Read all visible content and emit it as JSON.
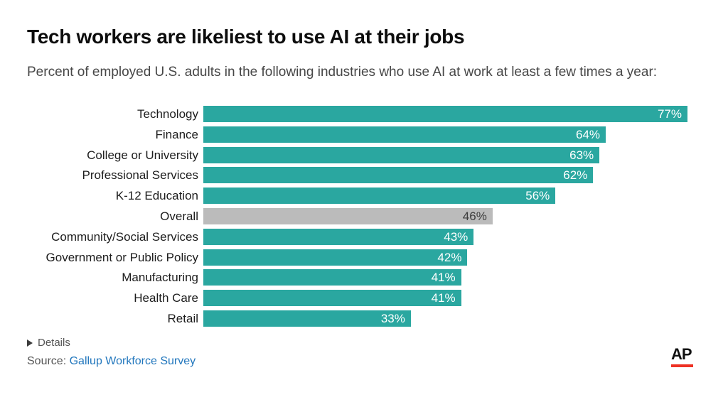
{
  "header": {
    "title": "Tech workers are likeliest to use AI at their jobs",
    "subtitle": "Percent of employed U.S. adults in the following industries who use AI at work at least a few times a year:"
  },
  "chart_data": {
    "type": "bar",
    "orientation": "horizontal",
    "title": "Tech workers are likeliest to use AI at their jobs",
    "subtitle": "Percent of employed U.S. adults in the following industries who use AI at work at least a few times a year:",
    "categories": [
      "Technology",
      "Finance",
      "College or University",
      "Professional Services",
      "K-12 Education",
      "Overall",
      "Community/Social Services",
      "Government or Public Policy",
      "Manufacturing",
      "Health Care",
      "Retail"
    ],
    "values": [
      77,
      64,
      63,
      62,
      56,
      46,
      43,
      42,
      41,
      41,
      33
    ],
    "unit": "%",
    "xlim": [
      0,
      80
    ],
    "grid": false,
    "legend": "none",
    "value_labels": "inside-end",
    "highlight_category": "Overall",
    "bar_color": "#2aa7a0",
    "highlight_bar_color": "#bbbbbb",
    "value_label_color": "#ffffff",
    "highlight_value_label_color": "#3d3d3d"
  },
  "footer": {
    "details_label": "Details",
    "source_prefix": "Source: ",
    "source_link": "Gallup Workforce Survey",
    "ap_logo_text": "AP",
    "ap_logo_bar_color": "#ee3124",
    "source_link_color": "#2277bd"
  }
}
